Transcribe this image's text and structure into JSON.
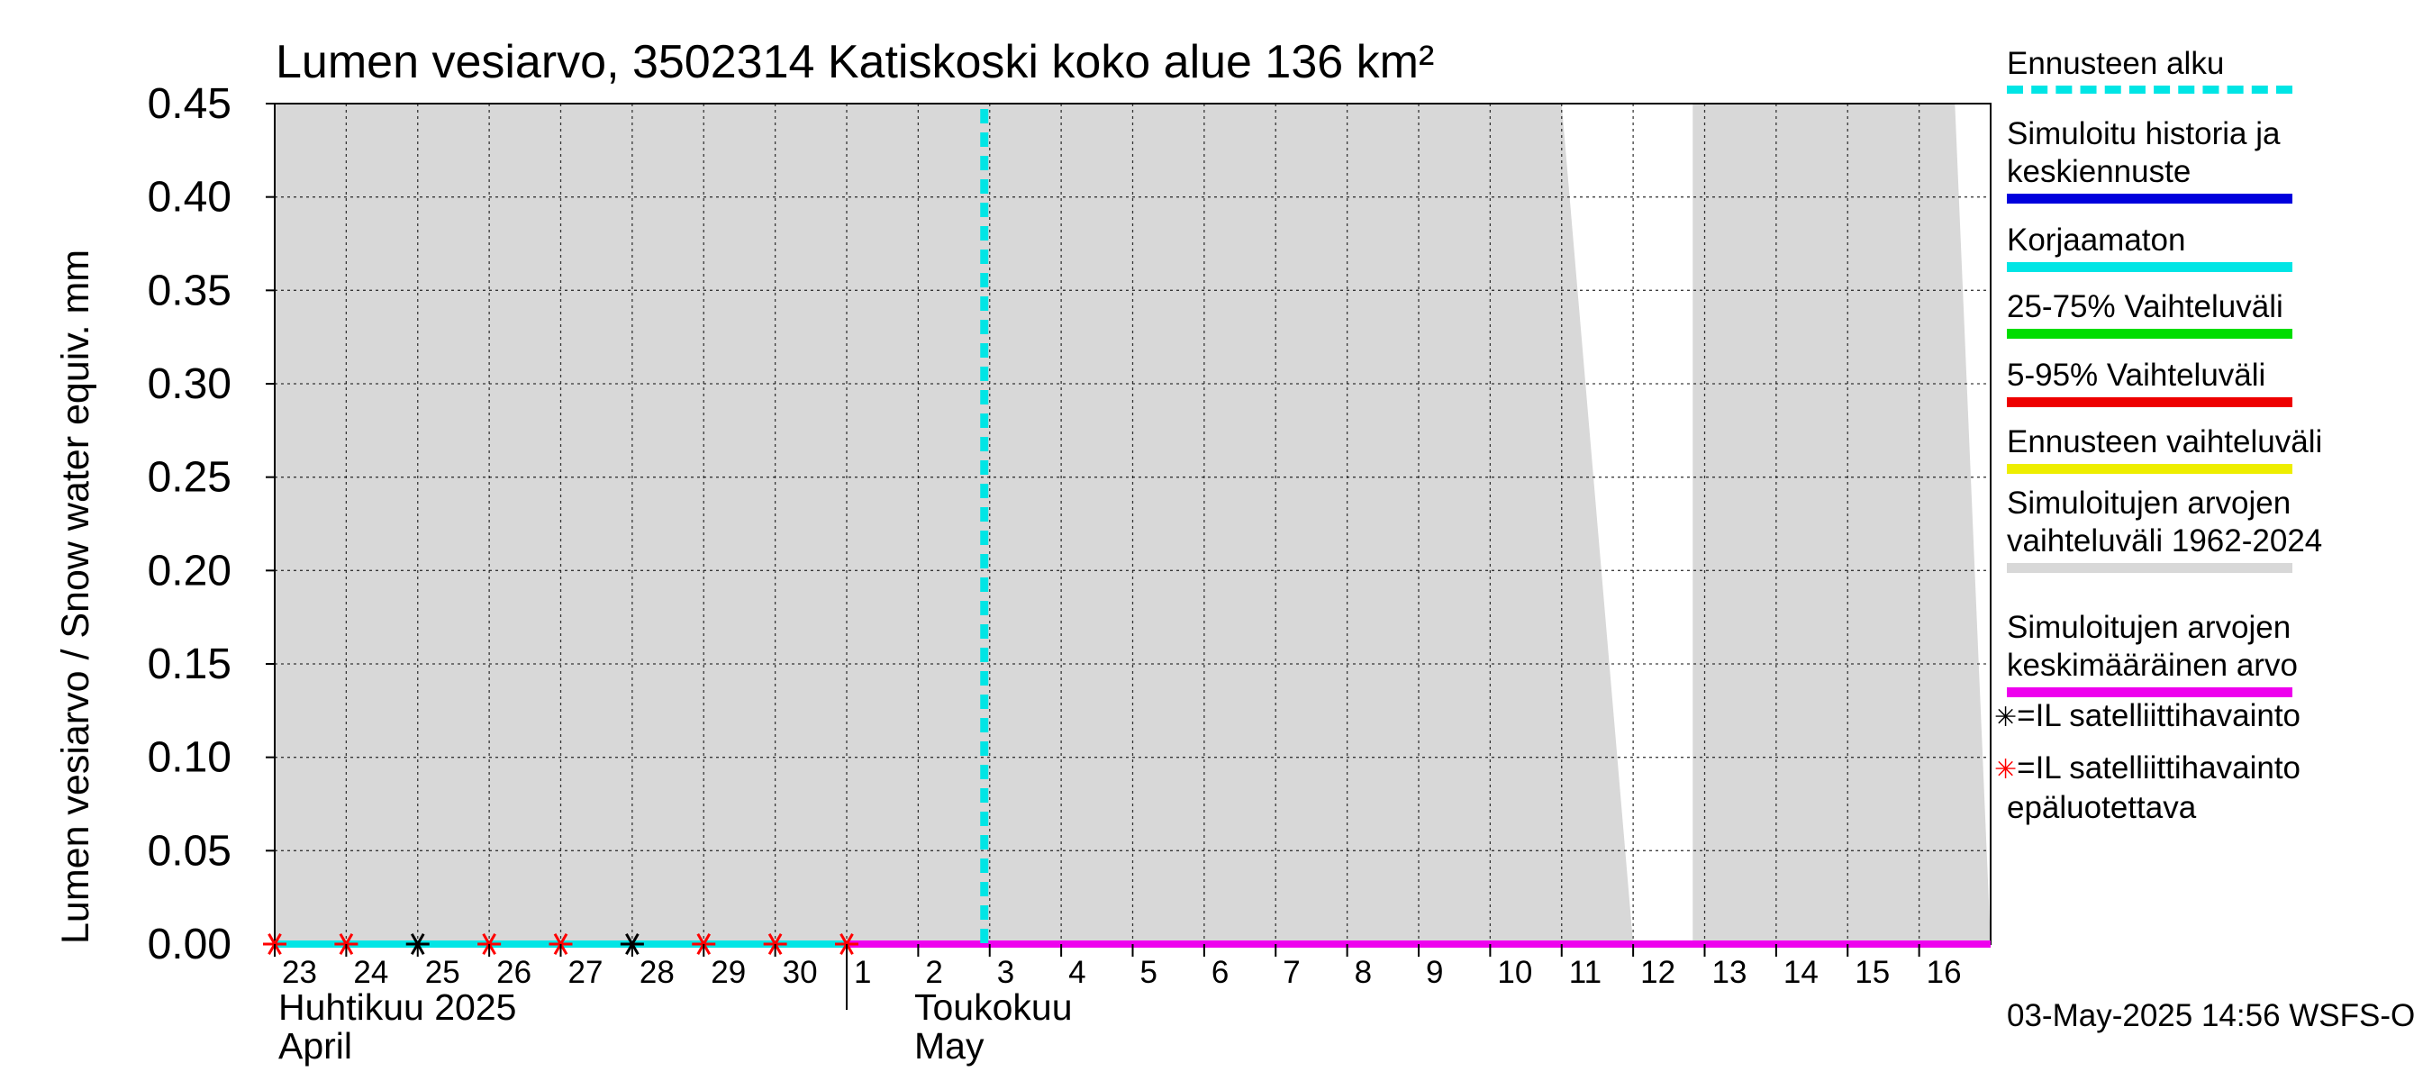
{
  "chart_data": {
    "type": "line",
    "title": "Lumen vesiarvo, 3502314 Katiskoski koko alue 136 km²",
    "ylabel": "Lumen vesiarvo / Snow water equiv.    mm",
    "ylim": [
      0,
      0.45
    ],
    "y_ticks": [
      "0.00",
      "0.05",
      "0.10",
      "0.15",
      "0.20",
      "0.25",
      "0.30",
      "0.35",
      "0.40",
      "0.45"
    ],
    "x_tick_labels": [
      "23",
      "24",
      "25",
      "26",
      "27",
      "28",
      "29",
      "30",
      "1",
      "2",
      "3",
      "4",
      "5",
      "6",
      "7",
      "8",
      "9",
      "10",
      "11",
      "12",
      "13",
      "14",
      "15",
      "16"
    ],
    "x_dates": [
      "2025-04-23",
      "2025-04-24",
      "2025-04-25",
      "2025-04-26",
      "2025-04-27",
      "2025-04-28",
      "2025-04-29",
      "2025-04-30",
      "2025-05-01",
      "2025-05-02",
      "2025-05-03",
      "2025-05-04",
      "2025-05-05",
      "2025-05-06",
      "2025-05-07",
      "2025-05-08",
      "2025-05-09",
      "2025-05-10",
      "2025-05-11",
      "2025-05-12",
      "2025-05-13",
      "2025-05-14",
      "2025-05-15",
      "2025-05-16"
    ],
    "xlim": [
      "2025-04-23",
      "2025-05-17"
    ],
    "months": [
      {
        "line1": "Huhtikuu  2025",
        "line2": "April",
        "start": "2025-04-23"
      },
      {
        "line1": "Toukokuu",
        "line2": "May",
        "start": "2025-05-01"
      }
    ],
    "forecast_start": "2025-05-03",
    "grid": true,
    "legend_placement": "right",
    "historical_range": {
      "color": "#d8d8d8",
      "segments": [
        {
          "x": [
            "2025-04-23",
            "2025-05-11",
            "2025-05-12"
          ],
          "upper": [
            0.45,
            0.45,
            0.0
          ]
        },
        {
          "x": [
            "2025-05-12T20:00",
            "2025-05-16T12:00",
            "2025-05-17"
          ],
          "upper": [
            0.45,
            0.45,
            0.0
          ]
        }
      ]
    },
    "series": [
      {
        "name": "Simuloitu historia ja keskiennuste",
        "color": "#0000dd",
        "x": [
          "2025-04-23",
          "2025-05-17"
        ],
        "values": [
          0,
          0
        ]
      },
      {
        "name": "Korjaamaton",
        "color": "#00e5e5",
        "x": [
          "2025-04-23",
          "2025-05-01"
        ],
        "values": [
          0,
          0
        ]
      },
      {
        "name": "Simuloitujen arvojen keskimääräinen arvo",
        "color": "#ee00ee",
        "x": [
          "2025-05-01",
          "2025-05-17"
        ],
        "values": [
          0,
          0
        ]
      }
    ],
    "satellite_obs": [
      {
        "date": "2025-04-23",
        "value": 0,
        "reliable": false
      },
      {
        "date": "2025-04-24",
        "value": 0,
        "reliable": false
      },
      {
        "date": "2025-04-25",
        "value": 0,
        "reliable": true
      },
      {
        "date": "2025-04-26",
        "value": 0,
        "reliable": false
      },
      {
        "date": "2025-04-27",
        "value": 0,
        "reliable": false
      },
      {
        "date": "2025-04-28",
        "value": 0,
        "reliable": true
      },
      {
        "date": "2025-04-29",
        "value": 0,
        "reliable": false
      },
      {
        "date": "2025-04-30",
        "value": 0,
        "reliable": false
      },
      {
        "date": "2025-05-01",
        "value": 0,
        "reliable": false
      }
    ]
  },
  "legend": {
    "items": [
      {
        "label": "Ennusteen alku",
        "color": "#00e5e5",
        "style": "dashed"
      },
      {
        "label": "Simuloitu historia ja\nkeskiennuste",
        "color": "#0000dd",
        "style": "solid"
      },
      {
        "label": "Korjaamaton",
        "color": "#00e5e5",
        "style": "solid"
      },
      {
        "label": "25-75% Vaihteluväli",
        "color": "#00dd00",
        "style": "solid"
      },
      {
        "label": "5-95% Vaihteluväli",
        "color": "#ee0000",
        "style": "solid"
      },
      {
        "label": "Ennusteen vaihteluväli",
        "color": "#eeee00",
        "style": "solid"
      },
      {
        "label": "Simuloitujen arvojen\nvaihteluväli 1962-2024",
        "color": "#d8d8d8",
        "style": "solid"
      },
      {
        "label": "Simuloitujen arvojen\nkeskimääräinen arvo",
        "color": "#ee00ee",
        "style": "solid"
      }
    ],
    "satellite_reliable": "=IL satelliittihavainto",
    "satellite_unreliable": "=IL satelliittihavainto\nepäluotettava"
  },
  "footer": "03-May-2025 14:56 WSFS-O"
}
